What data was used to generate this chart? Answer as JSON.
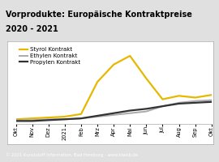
{
  "title_line1": "Vorprodukte: Europäische Kontraktpreise",
  "title_line2": "2020 - 2021",
  "title_bg": "#f5c200",
  "outer_bg": "#e0e0e0",
  "plot_bg": "#ffffff",
  "footer": "© 2021 Kunststoff Information, Bad Homburg - www.kiweb.de",
  "footer_bg": "#888888",
  "footer_color": "#ffffff",
  "x_labels": [
    "Okt",
    "Nov",
    "Dez",
    "2021",
    "Feb",
    "Mrz",
    "Apr",
    "Mai",
    "Jun",
    "Jul",
    "Aug",
    "Sep",
    "Okt"
  ],
  "series": [
    {
      "name": "Styrol Kontrakt",
      "color": "#e6b800",
      "lw": 1.6,
      "values": [
        5,
        6,
        7,
        8,
        11,
        48,
        68,
        78,
        52,
        28,
        32,
        30,
        33
      ]
    },
    {
      "name": "Ethylen Kontrakt",
      "color": "#aaaaaa",
      "lw": 1.4,
      "values": [
        4,
        4,
        5,
        5,
        6,
        8,
        10,
        12,
        14,
        20,
        24,
        26,
        27
      ]
    },
    {
      "name": "Propylen Kontrakt",
      "color": "#333333",
      "lw": 1.6,
      "values": [
        3,
        3,
        4,
        5,
        6,
        9,
        12,
        15,
        17,
        20,
        23,
        24,
        25
      ]
    }
  ],
  "ylim": [
    0,
    90
  ],
  "legend_fontsize": 5.0,
  "tick_fontsize": 4.8,
  "title_fontsize1": 7.0,
  "title_fontsize2": 7.0,
  "footer_fontsize": 3.8
}
